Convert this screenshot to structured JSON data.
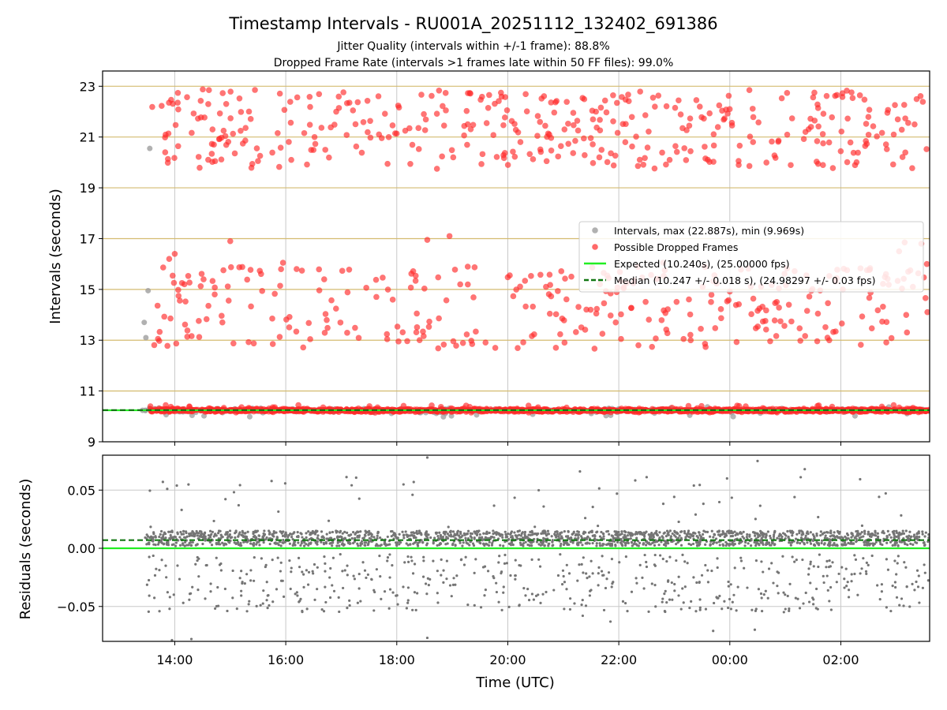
{
  "title": "Timestamp Intervals - RU001A_20251112_132402_691386",
  "subtitle_1": "Jitter Quality (intervals within +/-1 frame): 88.8%",
  "subtitle_2": "Dropped Frame Rate (intervals >1 frames late within 50 FF files): 99.0%",
  "colors": {
    "intervals": "#9e9e9e",
    "dropped": "#ff2a2a",
    "expected": "#22ee22",
    "median": "#117711",
    "hgrid_top": "#d4bb70",
    "grid": "#c8c8c8",
    "residuals": "#757575"
  },
  "chart_data": [
    {
      "type": "scatter",
      "panel": "intervals",
      "ylabel": "Intervals (seconds)",
      "ylim": [
        9,
        23.6
      ],
      "yticks": [
        "9",
        "11",
        "13",
        "15",
        "17",
        "19",
        "21",
        "23"
      ],
      "grid": "horizontal lines at odd seconds, vertical lines at 2-hour ticks",
      "legend_position": "center-right",
      "legend": {
        "intervals": "Intervals, max (22.887s), min (9.969s)",
        "dropped": "Possible Dropped Frames",
        "expected": "Expected (10.240s), (25.00000 fps)",
        "median": "Median (10.247 +/- 0.018 s), (24.98297 +/- 0.03 fps)"
      },
      "series": [
        {
          "name": "Intervals, max (22.887s), min (9.969s)",
          "max": 22.887,
          "min": 9.969,
          "x_range_hours": [
            13.45,
            27.6
          ],
          "baseline": 10.247
        },
        {
          "name": "Possible Dropped Frames",
          "clusters": [
            [
              9.95,
              10.45
            ],
            [
              12.65,
              17.1
            ],
            [
              19.75,
              22.9
            ]
          ],
          "x_range_hours": [
            13.55,
            27.6
          ]
        },
        {
          "name": "Expected (10.240s), (25.00000 fps)",
          "y": 10.24
        },
        {
          "name": "Median (10.247 +/- 0.018 s), (24.98297 +/- 0.03 fps)",
          "y": 10.247
        }
      ]
    },
    {
      "type": "scatter",
      "panel": "residuals",
      "xlabel": "Time (UTC)",
      "ylabel": "Residuals (seconds)",
      "xlim_hours": [
        12.7,
        27.6
      ],
      "ylim": [
        -0.08,
        0.08
      ],
      "xticks": [
        "14:00",
        "16:00",
        "18:00",
        "20:00",
        "22:00",
        "00:00",
        "02:00"
      ],
      "yticks": [
        "−0.05",
        "0.00",
        "0.05"
      ],
      "series": [
        {
          "name": "Residuals",
          "band": [
            0.002,
            0.015
          ],
          "scatter_range": [
            -0.08,
            0.078
          ]
        },
        {
          "name": "Expected",
          "y": 0.0
        },
        {
          "name": "Median",
          "y": 0.007
        }
      ]
    }
  ]
}
